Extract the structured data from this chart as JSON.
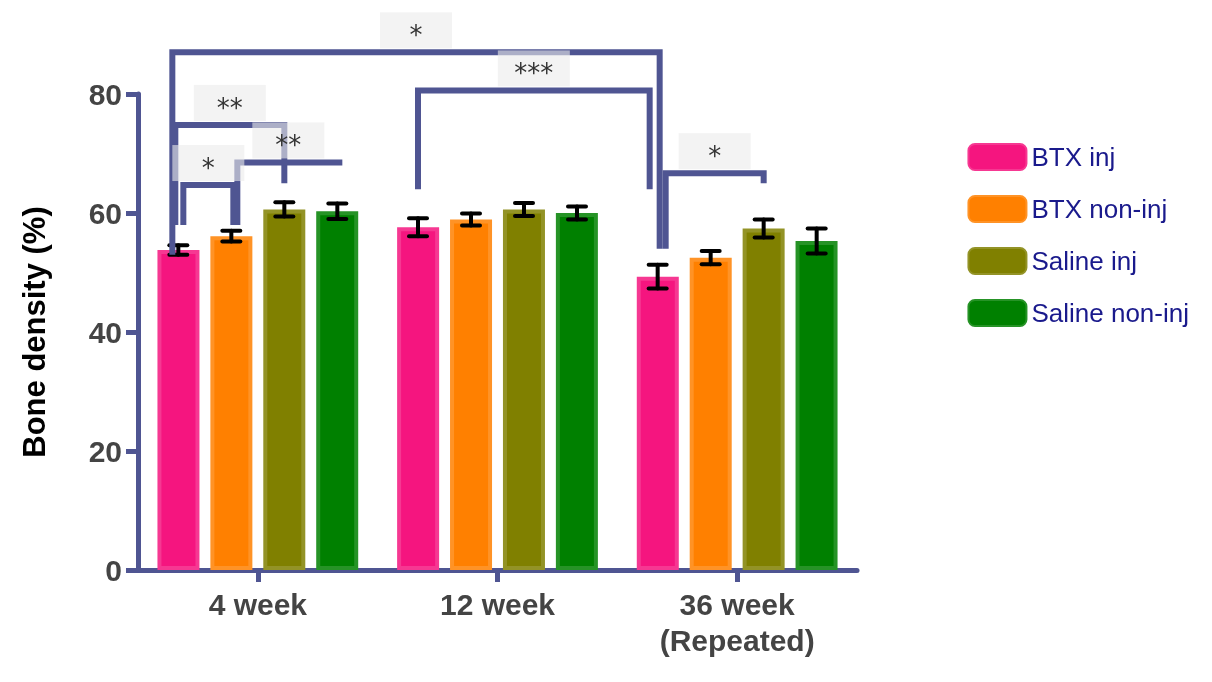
{
  "chart_data": {
    "type": "bar",
    "ylabel": "Bone density (%)",
    "categories": [
      "4 week",
      "12 week",
      "36 week\n(Repeated)"
    ],
    "series": [
      {
        "name": "BTX inj",
        "color": "#f5157f",
        "values": [
          53.8,
          57.6,
          49.3
        ],
        "errors": [
          0.8,
          1.5,
          2.0
        ]
      },
      {
        "name": "BTX non-inj",
        "color": "#ff8000",
        "values": [
          56.1,
          58.9,
          52.5
        ],
        "errors": [
          0.9,
          1.0,
          1.1
        ]
      },
      {
        "name": "Saline inj",
        "color": "#808000",
        "values": [
          60.6,
          60.6,
          57.4
        ],
        "errors": [
          1.2,
          1.1,
          1.5
        ]
      },
      {
        "name": "Saline non-inj",
        "color": "#008000",
        "values": [
          60.3,
          60.0,
          55.3
        ],
        "errors": [
          1.3,
          1.1,
          2.1
        ]
      }
    ],
    "ylim": [
      0,
      80
    ],
    "yticks": [
      0,
      20,
      40,
      60,
      80
    ],
    "grid": false,
    "legend": "right",
    "annotations": [
      "*",
      "**",
      "*",
      "**",
      "***",
      "*"
    ]
  }
}
